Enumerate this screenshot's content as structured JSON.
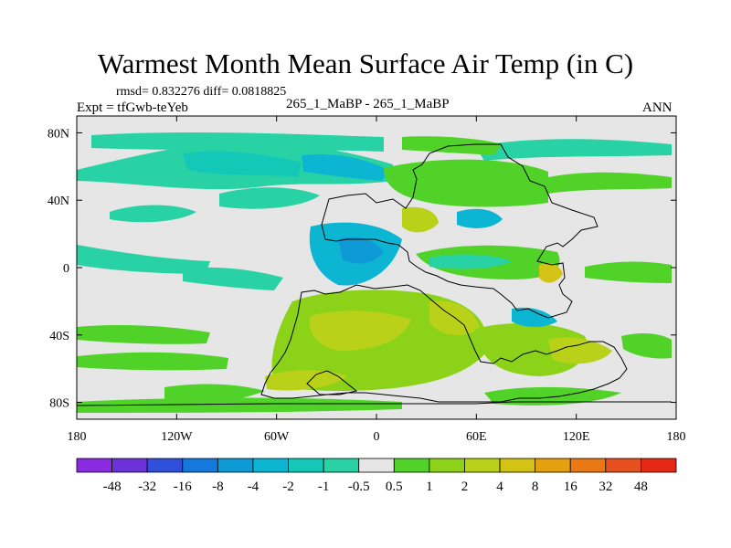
{
  "chart_data": {
    "type": "heatmap",
    "title": "Warmest Month Mean Surface Air Temp (in C)",
    "stats_text": "rmsd= 0.832276 diff= 0.0818825",
    "experiment_text": "Expt = tfGwb-teYeb",
    "center_text": "265_1_MaBP - 265_1_MaBP",
    "right_text": "ANN",
    "x_ticks": [
      "180",
      "120W",
      "60W",
      "0",
      "60E",
      "120E",
      "180"
    ],
    "x_tick_values": [
      -180,
      -120,
      -60,
      0,
      60,
      120,
      180
    ],
    "y_ticks": [
      "80N",
      "40N",
      "0",
      "40S",
      "80S"
    ],
    "y_tick_values": [
      80,
      40,
      0,
      -40,
      -80
    ],
    "xlim": [
      -180,
      180
    ],
    "ylim": [
      -90,
      90
    ],
    "colorbar": {
      "labels": [
        "-48",
        "-32",
        "-16",
        "-8",
        "-4",
        "-2",
        "-1",
        "-0.5",
        "0.5",
        "1",
        "2",
        "4",
        "8",
        "16",
        "32",
        "48"
      ],
      "colors": [
        "#8a2be2",
        "#6a32d8",
        "#3050dc",
        "#1478dc",
        "#0d9ad6",
        "#0cb6d2",
        "#14c8b8",
        "#28d2a4",
        "#e6e6e6",
        "#50d228",
        "#8cd219",
        "#b9d219",
        "#d2c314",
        "#e6a00f",
        "#ea7814",
        "#e6501e",
        "#e62814"
      ]
    },
    "background_color": "#e6e6e6"
  }
}
